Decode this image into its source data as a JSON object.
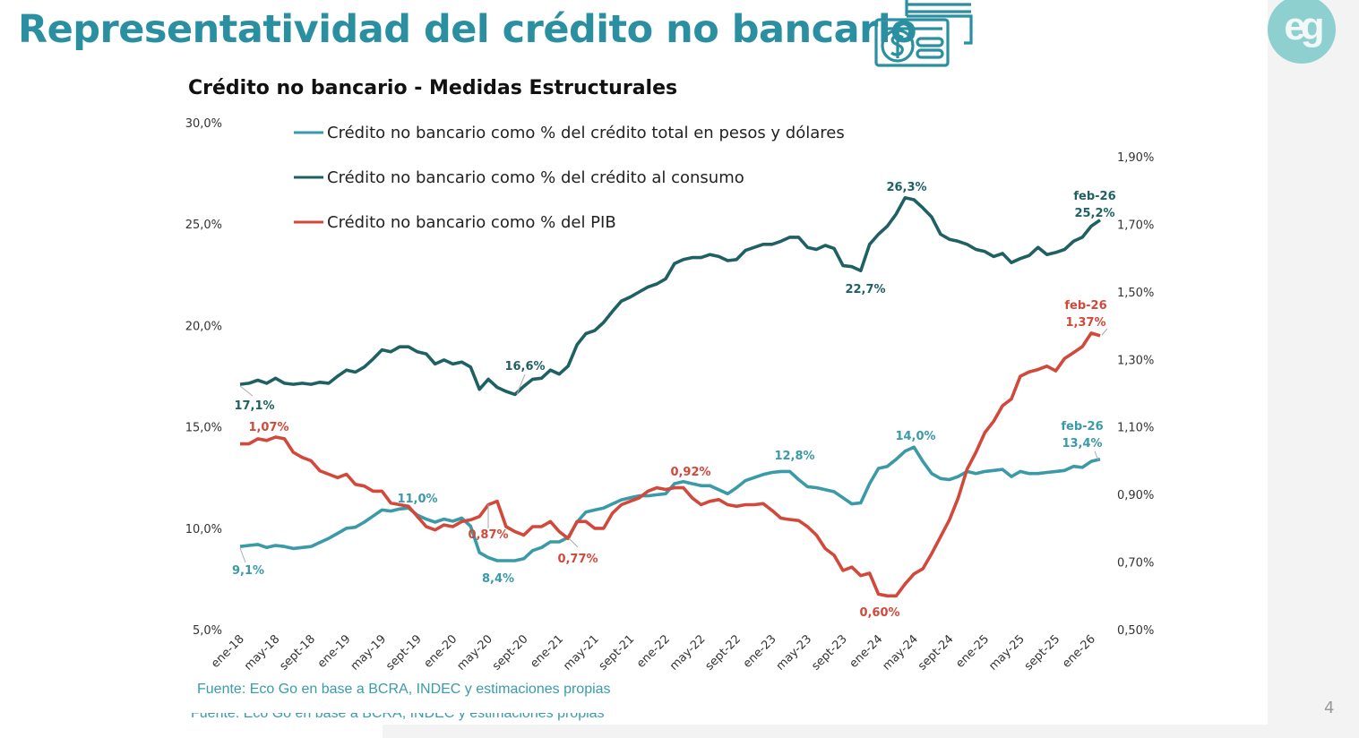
{
  "slide": {
    "title": "Representatividad del crédito no bancario",
    "logo_text": "eg",
    "page_number": "4",
    "source": "Fuente: Eco Go en base a BCRA, INDEC y estimaciones propias",
    "title_icon": "credit-card-money-icon"
  },
  "chart_data": {
    "type": "line",
    "title": "Crédito no bancario - Medidas Estructurales",
    "x_start": "ene-18",
    "x_end": "feb-26",
    "x_frequency": "monthly",
    "x_tick_labels": [
      "ene-18",
      "may-18",
      "sept-18",
      "ene-19",
      "may-19",
      "sept-19",
      "ene-20",
      "may-20",
      "sept-20",
      "ene-21",
      "may-21",
      "sept-21",
      "ene-22",
      "may-22",
      "sept-22",
      "ene-23",
      "may-23",
      "sept-23",
      "ene-24",
      "may-24",
      "sept-24",
      "ene-25",
      "may-25",
      "sept-25",
      "ene-26"
    ],
    "y_left": {
      "min": 5,
      "max": 30,
      "ticks": [
        "30,0%",
        "25,0%",
        "20,0%",
        "15,0%",
        "10,0%",
        "5,0%"
      ],
      "tick_values": [
        30,
        25,
        20,
        15,
        10,
        5
      ]
    },
    "y_right": {
      "min": 0.5,
      "max": 1.9,
      "ticks": [
        "1,90%",
        "1,70%",
        "1,50%",
        "1,30%",
        "1,10%",
        "0,90%",
        "0,70%",
        "0,50%"
      ],
      "tick_values": [
        1.9,
        1.7,
        1.5,
        1.3,
        1.1,
        0.9,
        0.7,
        0.5
      ]
    },
    "grid": false,
    "legend_position": "top-left",
    "series": [
      {
        "name": "Crédito no bancario como % del crédito total en pesos y dólares",
        "axis": "left",
        "color": "#3a9aa8",
        "values": [
          9.1,
          9.15,
          9.2,
          9.05,
          9.15,
          9.1,
          9.0,
          9.05,
          9.1,
          9.3,
          9.5,
          9.75,
          10.0,
          10.05,
          10.3,
          10.6,
          10.9,
          10.85,
          10.95,
          11.0,
          10.65,
          10.45,
          10.3,
          10.45,
          10.35,
          10.5,
          10.1,
          8.8,
          8.55,
          8.4,
          8.4,
          8.4,
          8.5,
          8.9,
          9.05,
          9.33,
          9.33,
          9.55,
          10.3,
          10.8,
          10.9,
          11.0,
          11.2,
          11.4,
          11.5,
          11.6,
          11.6,
          11.65,
          11.7,
          12.2,
          12.3,
          12.2,
          12.1,
          12.1,
          11.9,
          11.7,
          12.0,
          12.35,
          12.5,
          12.65,
          12.75,
          12.8,
          12.8,
          12.4,
          12.05,
          12.0,
          11.9,
          11.8,
          11.5,
          11.2,
          11.25,
          12.2,
          12.95,
          13.05,
          13.4,
          13.8,
          14.0,
          13.3,
          12.7,
          12.45,
          12.4,
          12.55,
          12.8,
          12.7,
          12.8,
          12.85,
          12.9,
          12.55,
          12.8,
          12.7,
          12.7,
          12.75,
          12.8,
          12.85,
          13.05,
          13.0,
          13.3,
          13.4
        ],
        "labels": [
          "9,1%",
          "11,0%",
          "8,4%",
          "12,8%",
          "14,0%",
          "feb-26",
          "13,4%"
        ]
      },
      {
        "name": "Crédito no bancario como % del crédito al consumo",
        "axis": "left",
        "color": "#1f6163",
        "values": [
          17.1,
          17.15,
          17.3,
          17.15,
          17.4,
          17.15,
          17.1,
          17.15,
          17.1,
          17.2,
          17.15,
          17.5,
          17.8,
          17.7,
          17.95,
          18.35,
          18.8,
          18.7,
          18.95,
          18.95,
          18.7,
          18.6,
          18.1,
          18.3,
          18.1,
          18.2,
          17.95,
          16.85,
          17.35,
          16.95,
          16.75,
          16.6,
          17.0,
          17.35,
          17.4,
          17.8,
          17.6,
          18.0,
          19.05,
          19.6,
          19.75,
          20.15,
          20.7,
          21.2,
          21.4,
          21.65,
          21.9,
          22.05,
          22.3,
          23.05,
          23.25,
          23.35,
          23.35,
          23.5,
          23.4,
          23.2,
          23.25,
          23.7,
          23.85,
          24.0,
          24.0,
          24.15,
          24.35,
          24.35,
          23.85,
          23.75,
          23.95,
          23.8,
          22.95,
          22.9,
          22.7,
          24.0,
          24.5,
          24.9,
          25.5,
          26.3,
          26.2,
          25.8,
          25.35,
          24.5,
          24.25,
          24.15,
          24.0,
          23.75,
          23.65,
          23.4,
          23.55,
          23.1,
          23.3,
          23.45,
          23.85,
          23.5,
          23.6,
          23.75,
          24.15,
          24.35,
          24.9,
          25.2
        ],
        "labels": [
          "17,1%",
          "16,6%",
          "22,7%",
          "26,3%",
          "feb-26",
          "25,2%"
        ]
      },
      {
        "name": "Crédito no bancario como % del PIB",
        "axis": "right",
        "color": "#d2483a",
        "values": [
          1.05,
          1.05,
          1.065,
          1.06,
          1.07,
          1.065,
          1.025,
          1.01,
          1.0,
          0.97,
          0.96,
          0.95,
          0.96,
          0.93,
          0.925,
          0.91,
          0.91,
          0.875,
          0.87,
          0.865,
          0.835,
          0.805,
          0.795,
          0.81,
          0.805,
          0.82,
          0.825,
          0.835,
          0.87,
          0.88,
          0.805,
          0.79,
          0.78,
          0.805,
          0.805,
          0.82,
          0.79,
          0.77,
          0.82,
          0.82,
          0.8,
          0.8,
          0.845,
          0.87,
          0.88,
          0.89,
          0.91,
          0.92,
          0.915,
          0.92,
          0.92,
          0.89,
          0.87,
          0.88,
          0.885,
          0.87,
          0.865,
          0.87,
          0.87,
          0.873,
          0.853,
          0.83,
          0.826,
          0.823,
          0.805,
          0.78,
          0.74,
          0.72,
          0.675,
          0.685,
          0.66,
          0.667,
          0.605,
          0.6,
          0.6,
          0.635,
          0.665,
          0.68,
          0.725,
          0.775,
          0.825,
          0.89,
          0.975,
          1.025,
          1.083,
          1.117,
          1.163,
          1.183,
          1.25,
          1.263,
          1.27,
          1.28,
          1.266,
          1.303,
          1.32,
          1.338,
          1.378,
          1.37
        ],
        "labels": [
          "1,07%",
          "0,87%",
          "0,77%",
          "0,92%",
          "0,60%",
          "feb-26",
          "1,37%"
        ]
      }
    ]
  }
}
